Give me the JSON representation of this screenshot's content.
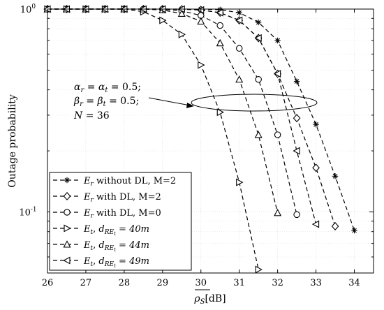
{
  "chart_data": {
    "type": "line",
    "xlabel": "ρS[dB]",
    "ylabel": "Outage probability",
    "xlim": [
      26,
      34.5
    ],
    "ylim": [
      0.05,
      1
    ],
    "yscale": "log",
    "grid": true,
    "legend_position": "bottom-left",
    "x_ticks": [
      "26",
      "27",
      "28",
      "29",
      "30",
      "31",
      "32",
      "33",
      "34"
    ],
    "y_ticks": [
      "10^0",
      "10^-1"
    ],
    "annotation": {
      "lines": [
        "αr = αt = 0.5;",
        "βr = βt = 0.5;",
        "N = 36"
      ]
    },
    "series": [
      {
        "name": "Er without DL, M=2",
        "marker": "asterisk",
        "x": [
          26,
          26.5,
          27,
          27.5,
          28,
          28.5,
          29,
          29.5,
          30,
          30.5,
          31,
          31.5,
          32,
          32.5,
          33,
          33.5,
          34
        ],
        "y": [
          1.0,
          1.0,
          1.0,
          1.0,
          1.0,
          1.0,
          1.0,
          1.0,
          0.999,
          0.993,
          0.96,
          0.86,
          0.7,
          0.44,
          0.27,
          0.15,
          0.081
        ]
      },
      {
        "name": "Er with DL, M=2",
        "marker": "diamond",
        "x": [
          26,
          26.5,
          27,
          27.5,
          28,
          28.5,
          29,
          29.5,
          30,
          30.5,
          31,
          31.5,
          32,
          32.5,
          33,
          33.5
        ],
        "y": [
          1.0,
          1.0,
          1.0,
          1.0,
          1.0,
          1.0,
          1.0,
          0.998,
          0.99,
          0.96,
          0.88,
          0.72,
          0.48,
          0.29,
          0.165,
          0.085
        ]
      },
      {
        "name": "Er with DL, M=0",
        "marker": "circle",
        "x": [
          26,
          26.5,
          27,
          27.5,
          28,
          28.5,
          29,
          29.5,
          30,
          30.5,
          31,
          31.5,
          32,
          32.5
        ],
        "y": [
          1.0,
          1.0,
          1.0,
          1.0,
          1.0,
          1.0,
          0.999,
          0.98,
          0.93,
          0.83,
          0.64,
          0.45,
          0.24,
          0.097
        ]
      },
      {
        "name": "Et, dREt = 40m",
        "marker": "triangle-right",
        "x": [
          26,
          26.5,
          27,
          27.5,
          28,
          28.5,
          29,
          29.5,
          30,
          30.5,
          31,
          31.5
        ],
        "y": [
          1.0,
          1.0,
          1.0,
          1.0,
          1.0,
          0.97,
          0.88,
          0.75,
          0.53,
          0.31,
          0.14,
          0.052
        ]
      },
      {
        "name": "Et, dREt = 44m",
        "marker": "triangle-up",
        "x": [
          26,
          26.5,
          27,
          27.5,
          28,
          28.5,
          29,
          29.5,
          30,
          30.5,
          31,
          31.5,
          32
        ],
        "y": [
          1.0,
          1.0,
          1.0,
          1.0,
          1.0,
          0.999,
          0.99,
          0.95,
          0.87,
          0.68,
          0.45,
          0.24,
          0.099
        ]
      },
      {
        "name": "Et, dREt = 49m",
        "marker": "triangle-left",
        "x": [
          26,
          26.5,
          27,
          27.5,
          28,
          28.5,
          29,
          29.5,
          30,
          30.5,
          31,
          31.5,
          32,
          32.5,
          33
        ],
        "y": [
          1.0,
          1.0,
          1.0,
          1.0,
          1.0,
          1.0,
          1.0,
          0.999,
          0.99,
          0.96,
          0.88,
          0.72,
          0.48,
          0.2,
          0.087
        ]
      }
    ]
  }
}
